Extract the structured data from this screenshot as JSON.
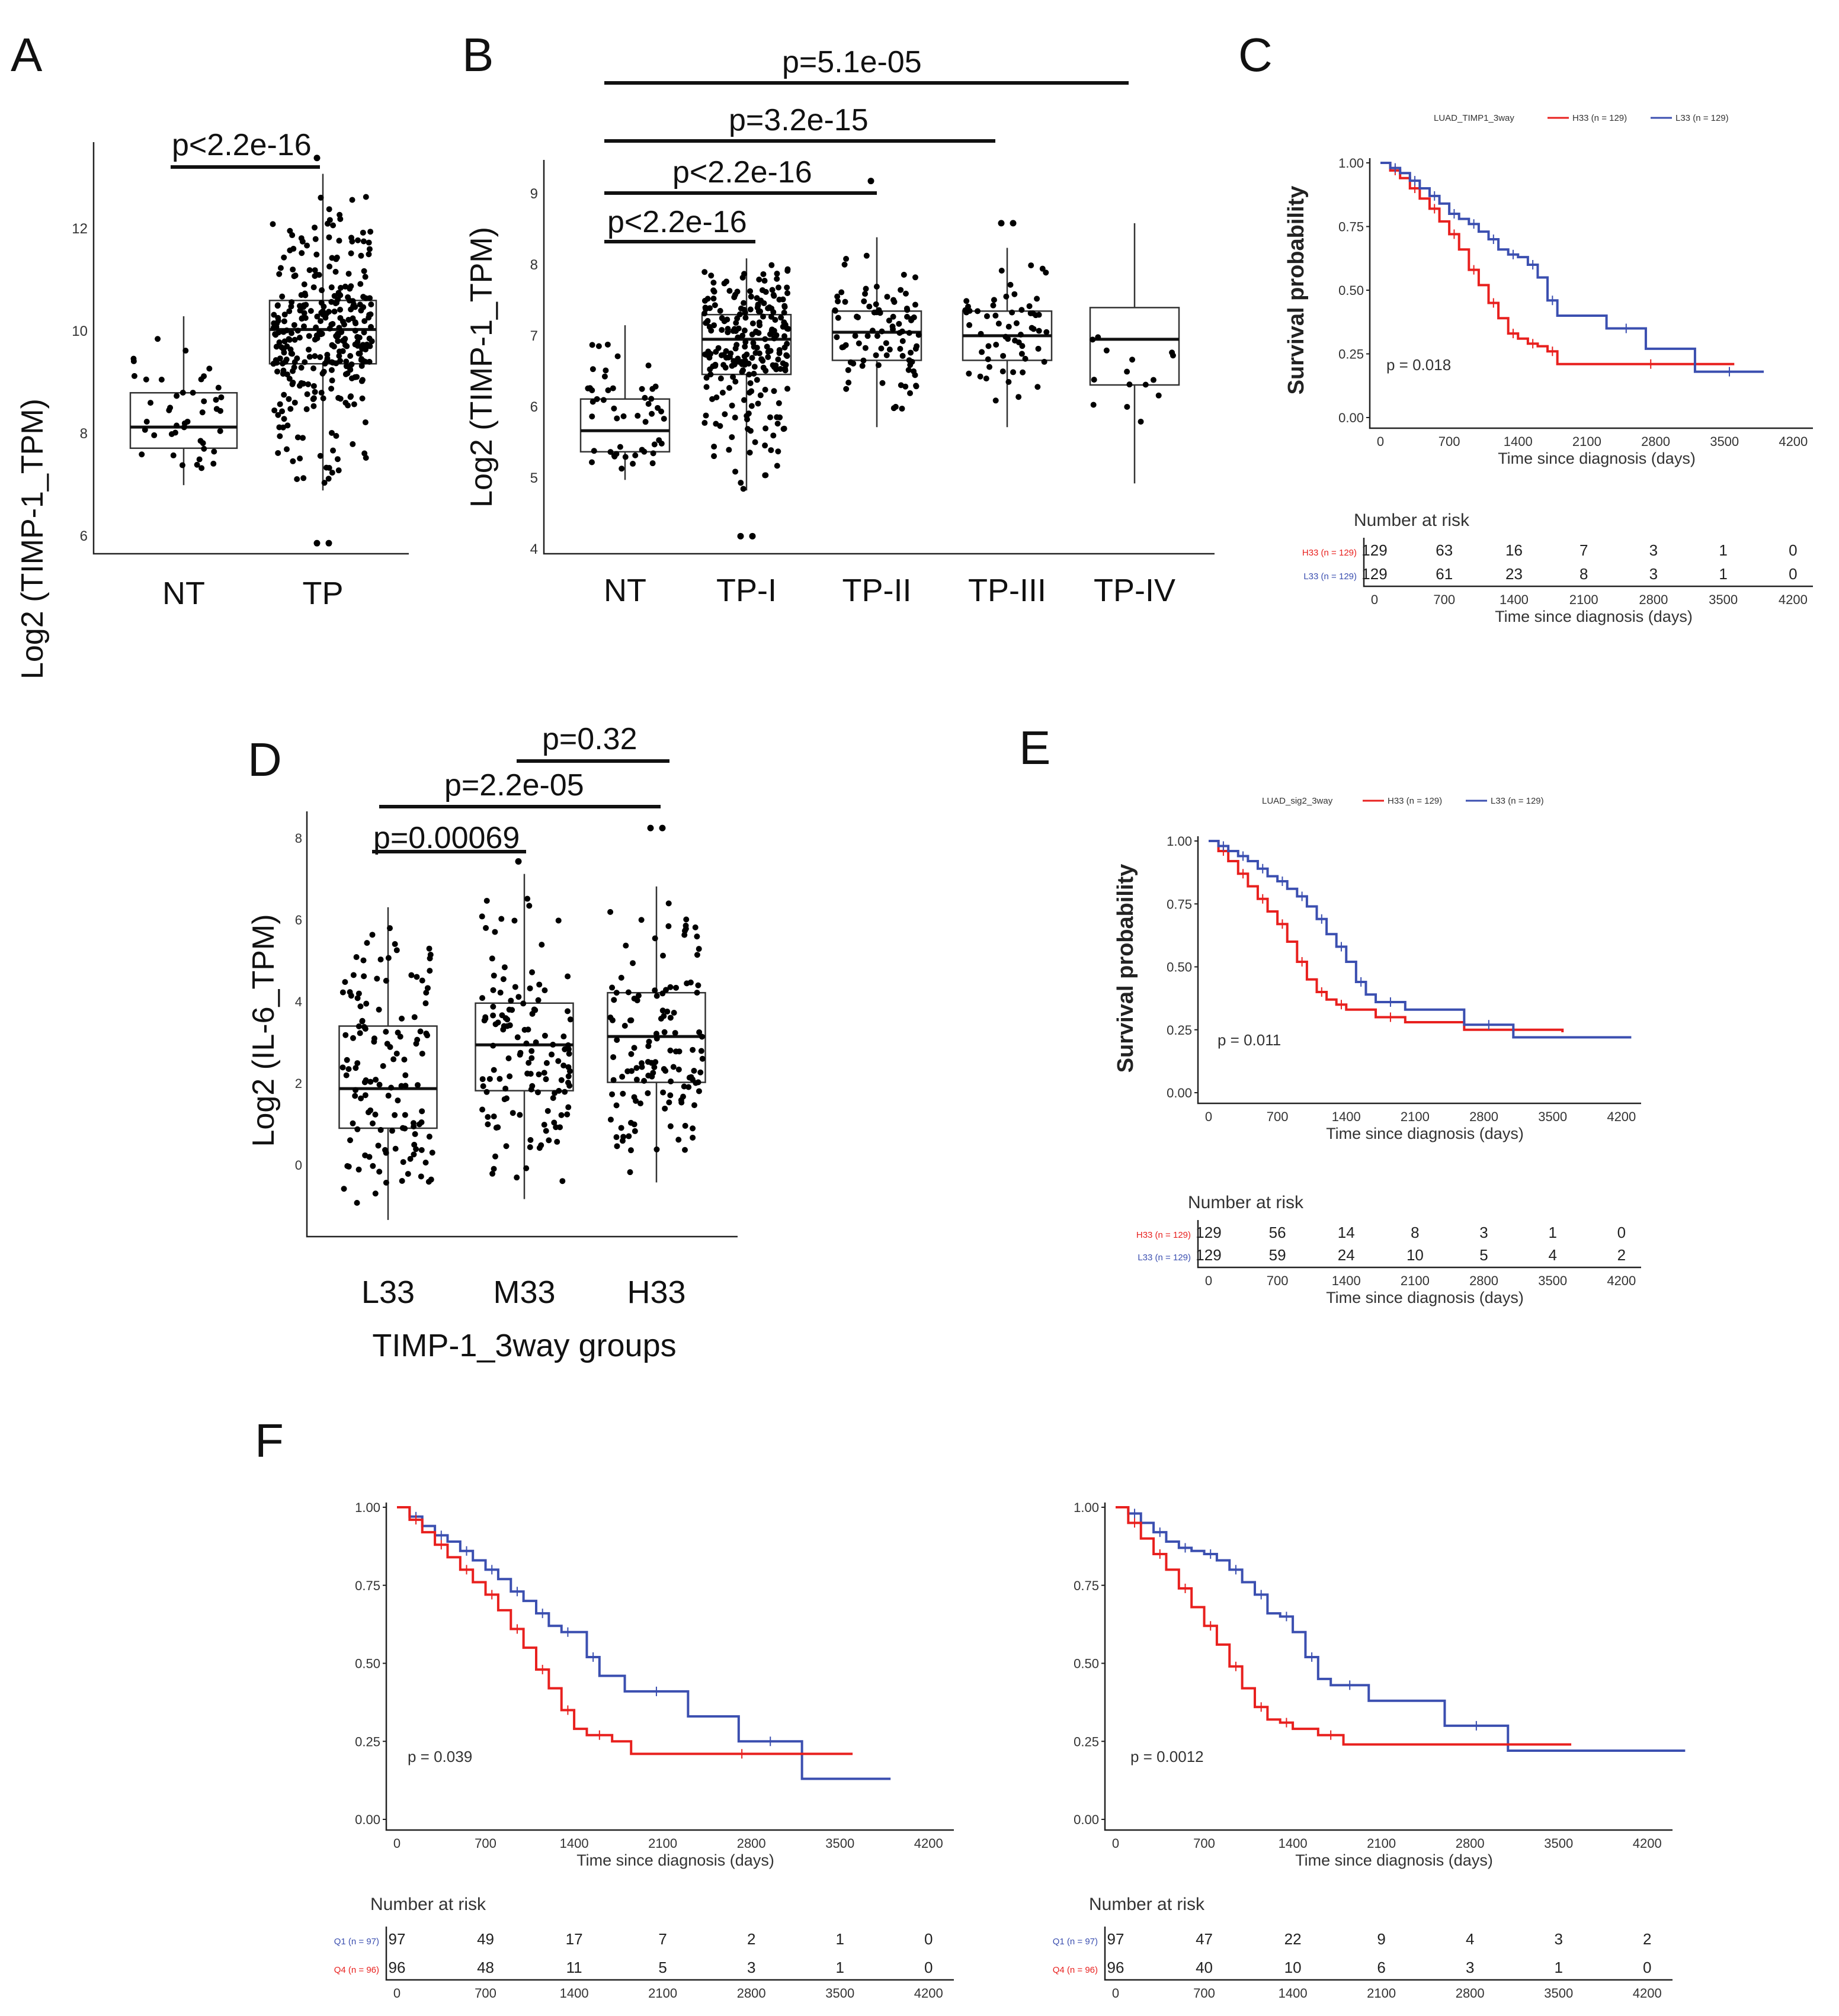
{
  "panels": {
    "A": {
      "label": "A",
      "ylabel": "Log2 (TIMP-1_TPM)",
      "yticks": [
        "6",
        "8",
        "10",
        "12"
      ],
      "comparison": "p<2.2e-16"
    },
    "B": {
      "label": "B",
      "ylabel": "Log2 (TIMP-1_TPM)",
      "yticks": [
        "4",
        "5",
        "6",
        "7",
        "8",
        "9"
      ],
      "comparisons": [
        "p=5.1e-05",
        "p=3.2e-15",
        "p<2.2e-16",
        "p<2.2e-16"
      ]
    },
    "C": {
      "label": "C",
      "legend_title": "LUAD_TIMP1_3way",
      "legend_h": "H33 (n = 129)",
      "legend_l": "L33 (n = 129)",
      "ylabel": "Survival probability",
      "pvalue": "p = 0.018",
      "risk_title": "Number at risk",
      "risk_rows": [
        {
          "label": "H33 (n = 129)",
          "values": [
            "129",
            "63",
            "16",
            "7",
            "3",
            "1",
            "0"
          ]
        },
        {
          "label": "L33 (n = 129)",
          "values": [
            "129",
            "61",
            "23",
            "8",
            "3",
            "1",
            "0"
          ]
        }
      ]
    },
    "D": {
      "label": "D",
      "ylabel": "Log2 (IL-6_TPM)",
      "yticks": [
        "0",
        "2",
        "4",
        "6",
        "8"
      ],
      "xlabel": "TIMP-1_3way groups",
      "comparisons": [
        "p=0.32",
        "p=2.2e-05",
        "p=0.00069"
      ]
    },
    "E": {
      "label": "E",
      "legend_title": "LUAD_sig2_3way",
      "legend_h": "H33 (n = 129)",
      "legend_l": "L33 (n = 129)",
      "ylabel": "Survival probability",
      "pvalue": "p = 0.011",
      "risk_title": "Number at risk",
      "risk_rows": [
        {
          "label": "H33 (n = 129)",
          "values": [
            "129",
            "56",
            "14",
            "8",
            "3",
            "1",
            "0"
          ]
        },
        {
          "label": "L33 (n = 129)",
          "values": [
            "129",
            "59",
            "24",
            "10",
            "5",
            "4",
            "2"
          ]
        }
      ]
    },
    "F": {
      "label": "F",
      "left": {
        "pvalue": "p = 0.039",
        "risk_title": "Number at risk",
        "risk_rows": [
          {
            "label": "Q1 (n = 97)",
            "values": [
              "97",
              "49",
              "17",
              "7",
              "2",
              "1",
              "0"
            ]
          },
          {
            "label": "Q4 (n = 96)",
            "values": [
              "96",
              "48",
              "11",
              "5",
              "3",
              "1",
              "0"
            ]
          }
        ]
      },
      "right": {
        "pvalue": "p = 0.0012",
        "risk_title": "Number at risk",
        "risk_rows": [
          {
            "label": "Q1 (n = 97)",
            "values": [
              "97",
              "47",
              "22",
              "9",
              "4",
              "3",
              "2"
            ]
          },
          {
            "label": "Q4 (n = 96)",
            "values": [
              "96",
              "40",
              "10",
              "6",
              "3",
              "1",
              "0"
            ]
          }
        ]
      }
    }
  },
  "km_common": {
    "yticks": [
      "1.00",
      "0.75",
      "0.50",
      "0.25",
      "0.00"
    ],
    "xticks": [
      "0",
      "700",
      "1400",
      "2100",
      "2800",
      "3500",
      "4200"
    ],
    "xlabel": "Time since diagnosis (days)"
  },
  "colors": {
    "high": "#e8201e",
    "low": "#3b4fb0",
    "point": "#000000"
  },
  "chart_data": [
    {
      "type": "box",
      "panel": "A",
      "title": "",
      "xlabel": "",
      "ylabel": "Log2 (TIMP-1_TPM)",
      "ylim": [
        5.8,
        13.6
      ],
      "categories": [
        "NT",
        "TP"
      ],
      "stats": [
        {
          "q1": 7.8,
          "median": 8.2,
          "q3": 8.85,
          "min": 7.1,
          "max": 10.3
        },
        {
          "q1": 9.4,
          "median": 10.05,
          "q3": 10.6,
          "min": 7.0,
          "max": 13.0
        }
      ],
      "outliers": [
        [],
        [
          6.0,
          6.0,
          13.3
        ]
      ],
      "n": [
        45,
        320
      ],
      "comparisons": [
        {
          "groups": [
            "NT",
            "TP"
          ],
          "p": "p<2.2e-16"
        }
      ]
    },
    {
      "type": "box",
      "panel": "B",
      "title": "",
      "xlabel": "",
      "ylabel": "Log2 (TIMP-1_TPM)",
      "ylim": [
        3.9,
        9.5
      ],
      "categories": [
        "NT",
        "TP-I",
        "TP-II",
        "TP-III",
        "TP-IV"
      ],
      "stats": [
        {
          "q1": 5.35,
          "median": 5.65,
          "q3": 6.1,
          "min": 4.95,
          "max": 7.15
        },
        {
          "q1": 6.45,
          "median": 6.95,
          "q3": 7.3,
          "min": 4.8,
          "max": 8.1
        },
        {
          "q1": 6.65,
          "median": 7.05,
          "q3": 7.35,
          "min": 5.7,
          "max": 8.4
        },
        {
          "q1": 6.65,
          "median": 7.0,
          "q3": 7.35,
          "min": 5.7,
          "max": 8.25
        },
        {
          "q1": 6.3,
          "median": 6.95,
          "q3": 7.4,
          "min": 4.9,
          "max": 8.6
        }
      ],
      "outliers": [
        [],
        [
          4.15,
          4.15
        ],
        [
          9.2
        ],
        [
          8.6,
          8.6
        ],
        []
      ],
      "n": [
        50,
        240,
        90,
        60,
        15
      ],
      "comparisons": [
        {
          "groups": [
            "NT",
            "TP-IV"
          ],
          "p": "p=5.1e-05"
        },
        {
          "groups": [
            "NT",
            "TP-III"
          ],
          "p": "p=3.2e-15"
        },
        {
          "groups": [
            "NT",
            "TP-II"
          ],
          "p": "p<2.2e-16"
        },
        {
          "groups": [
            "NT",
            "TP-I"
          ],
          "p": "p<2.2e-16"
        }
      ]
    },
    {
      "type": "step",
      "panel": "C",
      "title": "LUAD_TIMP1_3way",
      "xlabel": "Time since diagnosis (days)",
      "ylabel": "Survival probability",
      "xlim": [
        0,
        4400
      ],
      "ylim": [
        0,
        1
      ],
      "series": [
        {
          "name": "H33 (n = 129)",
          "color": "#e8201e",
          "x": [
            0,
            100,
            200,
            300,
            400,
            500,
            600,
            700,
            800,
            900,
            1000,
            1100,
            1200,
            1300,
            1400,
            1500,
            1600,
            1700,
            1800,
            1900,
            3600
          ],
          "y": [
            1.0,
            0.97,
            0.94,
            0.9,
            0.86,
            0.82,
            0.77,
            0.72,
            0.66,
            0.58,
            0.52,
            0.45,
            0.39,
            0.33,
            0.31,
            0.29,
            0.28,
            0.26,
            0.21,
            0.21,
            0.21
          ]
        },
        {
          "name": "L33 (n = 129)",
          "color": "#3b4fb0",
          "x": [
            0,
            100,
            200,
            300,
            400,
            500,
            600,
            700,
            800,
            900,
            1000,
            1100,
            1200,
            1300,
            1400,
            1500,
            1600,
            1700,
            1800,
            2300,
            2700,
            3200,
            3900
          ],
          "y": [
            1.0,
            0.98,
            0.96,
            0.93,
            0.9,
            0.87,
            0.84,
            0.8,
            0.78,
            0.76,
            0.73,
            0.7,
            0.66,
            0.64,
            0.63,
            0.6,
            0.55,
            0.46,
            0.4,
            0.35,
            0.27,
            0.18,
            0.18
          ]
        }
      ]
    },
    {
      "type": "box",
      "panel": "D",
      "title": "",
      "xlabel": "TIMP-1_3way groups",
      "ylabel": "Log2 (IL-6_TPM)",
      "ylim": [
        -1.6,
        8.6
      ],
      "categories": [
        "L33",
        "M33",
        "H33"
      ],
      "stats": [
        {
          "q1": 1.0,
          "median": 1.95,
          "q3": 3.45,
          "min": -1.2,
          "max": 6.3
        },
        {
          "q1": 1.9,
          "median": 3.0,
          "q3": 4.0,
          "min": -0.7,
          "max": 7.1
        },
        {
          "q1": 2.1,
          "median": 3.2,
          "q3": 4.25,
          "min": -0.3,
          "max": 6.8
        }
      ],
      "outliers": [
        [],
        [
          7.4
        ],
        [
          8.2,
          8.2
        ]
      ],
      "n": [
        129,
        129,
        129
      ],
      "comparisons": [
        {
          "groups": [
            "M33",
            "H33"
          ],
          "p": "p=0.32"
        },
        {
          "groups": [
            "L33",
            "H33"
          ],
          "p": "p=2.2e-05"
        },
        {
          "groups": [
            "L33",
            "M33"
          ],
          "p": "p=0.00069"
        }
      ]
    },
    {
      "type": "step",
      "panel": "E",
      "title": "LUAD_sig2_3way",
      "xlabel": "Time since diagnosis (days)",
      "ylabel": "Survival probability",
      "xlim": [
        0,
        4400
      ],
      "ylim": [
        0,
        1
      ],
      "series": [
        {
          "name": "H33 (n = 129)",
          "color": "#e8201e",
          "x": [
            0,
            100,
            200,
            300,
            400,
            500,
            600,
            700,
            800,
            900,
            1000,
            1100,
            1200,
            1300,
            1400,
            1700,
            2000,
            2600,
            3600
          ],
          "y": [
            1.0,
            0.96,
            0.92,
            0.87,
            0.82,
            0.77,
            0.72,
            0.67,
            0.6,
            0.52,
            0.45,
            0.4,
            0.37,
            0.35,
            0.33,
            0.3,
            0.28,
            0.25,
            0.24
          ]
        },
        {
          "name": "L33 (n = 129)",
          "color": "#3b4fb0",
          "x": [
            0,
            100,
            200,
            300,
            400,
            500,
            600,
            700,
            800,
            900,
            1000,
            1100,
            1200,
            1300,
            1400,
            1500,
            1600,
            1700,
            2000,
            2600,
            3100,
            4300
          ],
          "y": [
            1.0,
            0.98,
            0.96,
            0.94,
            0.92,
            0.89,
            0.86,
            0.84,
            0.81,
            0.78,
            0.74,
            0.69,
            0.63,
            0.58,
            0.52,
            0.44,
            0.39,
            0.36,
            0.33,
            0.27,
            0.22,
            0.22
          ]
        }
      ]
    },
    {
      "type": "step",
      "panel": "F-left",
      "title": "",
      "xlabel": "Time since diagnosis (days)",
      "ylabel": "",
      "xlim": [
        0,
        4400
      ],
      "ylim": [
        0,
        1
      ],
      "series": [
        {
          "name": "Q1 (n = 97)",
          "color": "#3b4fb0",
          "x": [
            0,
            100,
            200,
            300,
            400,
            500,
            600,
            700,
            800,
            900,
            1000,
            1100,
            1200,
            1300,
            1400,
            1500,
            1600,
            1800,
            2300,
            2700,
            3200,
            3900
          ],
          "y": [
            1.0,
            0.97,
            0.94,
            0.91,
            0.89,
            0.86,
            0.83,
            0.8,
            0.77,
            0.73,
            0.7,
            0.66,
            0.62,
            0.6,
            0.6,
            0.52,
            0.46,
            0.41,
            0.33,
            0.25,
            0.13,
            0.13
          ]
        },
        {
          "name": "Q4 (n = 96)",
          "color": "#e8201e",
          "x": [
            0,
            100,
            200,
            300,
            400,
            500,
            600,
            700,
            800,
            900,
            1000,
            1100,
            1200,
            1300,
            1400,
            1500,
            1700,
            1850,
            3600
          ],
          "y": [
            1.0,
            0.96,
            0.92,
            0.88,
            0.84,
            0.8,
            0.76,
            0.72,
            0.67,
            0.61,
            0.55,
            0.48,
            0.42,
            0.35,
            0.29,
            0.27,
            0.25,
            0.21,
            0.21
          ]
        }
      ]
    },
    {
      "type": "step",
      "panel": "F-right",
      "title": "",
      "xlabel": "Time since diagnosis (days)",
      "ylabel": "",
      "xlim": [
        0,
        4400
      ],
      "ylim": [
        0,
        1
      ],
      "series": [
        {
          "name": "Q1 (n = 97)",
          "color": "#3b4fb0",
          "x": [
            0,
            100,
            200,
            300,
            400,
            500,
            600,
            700,
            800,
            900,
            1000,
            1100,
            1200,
            1300,
            1400,
            1500,
            1600,
            1700,
            2000,
            2600,
            3100,
            4500
          ],
          "y": [
            1.0,
            0.98,
            0.95,
            0.92,
            0.89,
            0.87,
            0.86,
            0.85,
            0.83,
            0.8,
            0.76,
            0.72,
            0.66,
            0.65,
            0.6,
            0.52,
            0.45,
            0.43,
            0.38,
            0.3,
            0.22,
            0.22
          ]
        },
        {
          "name": "Q4 (n = 96)",
          "color": "#e8201e",
          "x": [
            0,
            100,
            200,
            300,
            400,
            500,
            600,
            700,
            800,
            900,
            1000,
            1100,
            1200,
            1300,
            1400,
            1600,
            1800,
            3600
          ],
          "y": [
            1.0,
            0.95,
            0.9,
            0.85,
            0.8,
            0.74,
            0.68,
            0.62,
            0.56,
            0.49,
            0.42,
            0.36,
            0.32,
            0.31,
            0.29,
            0.27,
            0.24,
            0.24
          ]
        }
      ]
    }
  ]
}
